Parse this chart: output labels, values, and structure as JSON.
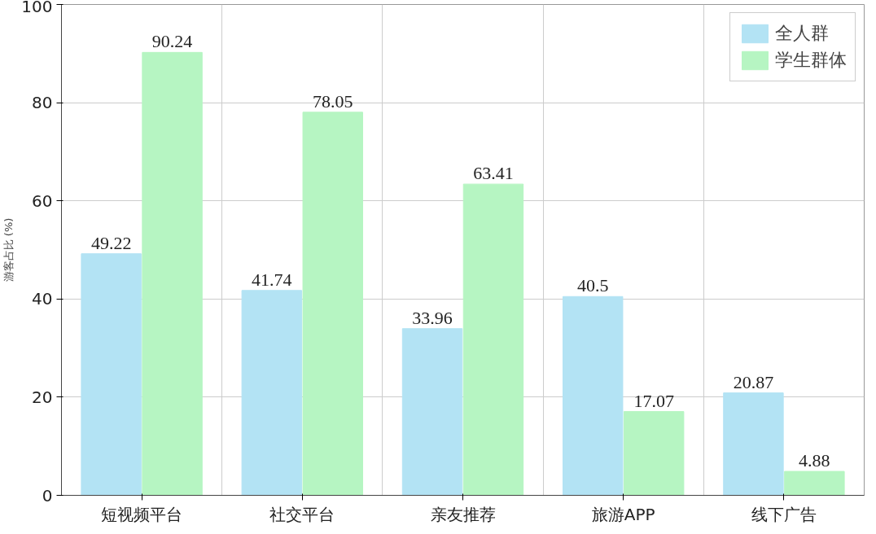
{
  "chart_data": {
    "type": "bar",
    "ylabel": "游客占比 (%)",
    "categories": [
      "短视频平台",
      "社交平台",
      "亲友推荐",
      "旅游APP",
      "线下广告"
    ],
    "series": [
      {
        "name": "全人群",
        "color": "#b3e3f4",
        "values": [
          49.22,
          41.74,
          33.96,
          40.5,
          20.87
        ]
      },
      {
        "name": "学生群体",
        "color": "#b6f5c2",
        "values": [
          90.24,
          78.05,
          63.41,
          17.07,
          4.88
        ]
      }
    ],
    "ylim": [
      0,
      100
    ],
    "yticks": [
      0,
      20,
      40,
      60,
      80,
      100
    ],
    "grid": true,
    "legend": "top right",
    "data_labels": true
  }
}
